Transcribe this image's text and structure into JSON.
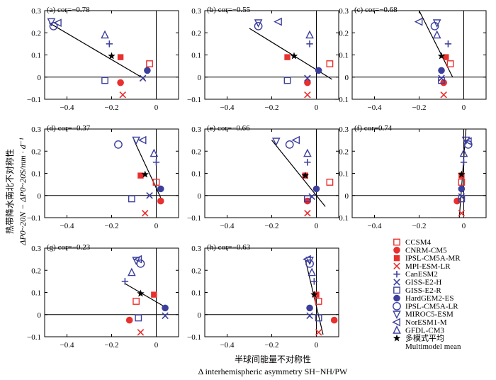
{
  "figure": {
    "ylabel_cn": "热带降水南北不对称性",
    "ylabel_en": "ΔP0~20N − ΔP0~20S/mm · d⁻¹",
    "xlabel_cn": "半球间能量不对称性",
    "xlabel_en": "Δ interhemispheric asymmetry SH−NH/PW"
  },
  "colors": {
    "red": "#e8302e",
    "blue": "#3c3f9c",
    "black": "#000000"
  },
  "legend": [
    {
      "label": "CCSM4",
      "shape": "square-open",
      "color": "red"
    },
    {
      "label": "CNRM-CM5",
      "shape": "circle-filled",
      "color": "red"
    },
    {
      "label": "IPSL-CM5A-MR",
      "shape": "square-filled",
      "color": "red"
    },
    {
      "label": "MPI-ESM-LR",
      "shape": "x",
      "color": "red"
    },
    {
      "label": "CanESM2",
      "shape": "plus",
      "color": "blue"
    },
    {
      "label": "GISS-E2-H",
      "shape": "x",
      "color": "blue"
    },
    {
      "label": "GISS-E2-R",
      "shape": "square-open",
      "color": "blue"
    },
    {
      "label": "HardGEM2-ES",
      "shape": "circle-filled",
      "color": "blue"
    },
    {
      "label": "IPSL-CM5A-LR",
      "shape": "circle-open",
      "color": "blue"
    },
    {
      "label": "MIROC5-ESM",
      "shape": "tri-down-open",
      "color": "blue"
    },
    {
      "label": "NorESM1-M",
      "shape": "tri-left-open",
      "color": "blue"
    },
    {
      "label": "GFDL-CM3",
      "shape": "tri-up-open",
      "color": "blue"
    },
    {
      "label": "多模式平均",
      "shape": "star",
      "color": "black"
    },
    {
      "label": "Multimodel mean",
      "shape": "none",
      "color": "black"
    }
  ],
  "chart_data": [
    {
      "type": "scatter",
      "panel": "(a)",
      "title": "(a) cor=−0.78",
      "xlim": [
        -0.5,
        0.1
      ],
      "ylim": [
        -0.1,
        0.3
      ],
      "xticks": [
        "-0.4",
        "-0.2",
        "0"
      ],
      "yticks": [
        "-0.1",
        "0",
        "0.1",
        "0.2",
        "0.3"
      ],
      "line": {
        "x": [
          -0.48,
          -0.05
        ],
        "y": [
          0.245,
          -0.01
        ]
      },
      "points": [
        {
          "model": "CCSM4",
          "x": -0.03,
          "y": 0.06
        },
        {
          "model": "CNRM-CM5",
          "x": -0.16,
          "y": -0.025
        },
        {
          "model": "IPSL-CM5A-MR",
          "x": -0.16,
          "y": 0.09
        },
        {
          "model": "MPI-ESM-LR",
          "x": -0.15,
          "y": -0.08
        },
        {
          "model": "CanESM2",
          "x": -0.21,
          "y": 0.15
        },
        {
          "model": "GISS-E2-H",
          "x": -0.06,
          "y": -0.005
        },
        {
          "model": "GISS-E2-R",
          "x": -0.23,
          "y": -0.015
        },
        {
          "model": "HardGEM2-ES",
          "x": -0.04,
          "y": 0.03
        },
        {
          "model": "IPSL-CM5A-LR",
          "x": -0.46,
          "y": 0.23
        },
        {
          "model": "MIROC5-ESM",
          "x": -0.47,
          "y": 0.25
        },
        {
          "model": "NorESM1-M",
          "x": -0.44,
          "y": 0.245
        },
        {
          "model": "GFDL-CM3",
          "x": -0.23,
          "y": 0.19
        },
        {
          "model": "Multimodel mean",
          "x": -0.2,
          "y": 0.095
        }
      ]
    },
    {
      "type": "scatter",
      "panel": "(b)",
      "title": "(b) cor=−0.55",
      "xlim": [
        -0.5,
        0.1
      ],
      "ylim": [
        -0.1,
        0.3
      ],
      "xticks": [
        "-0.4",
        "-0.2",
        "0"
      ],
      "yticks": [
        "-0.1",
        "0",
        "0.1",
        "0.2",
        "0.3"
      ],
      "line": {
        "x": [
          -0.3,
          0.07
        ],
        "y": [
          0.22,
          -0.01
        ]
      },
      "points": [
        {
          "model": "CCSM4",
          "x": 0.06,
          "y": 0.06
        },
        {
          "model": "CNRM-CM5",
          "x": -0.04,
          "y": -0.025
        },
        {
          "model": "IPSL-CM5A-MR",
          "x": -0.13,
          "y": 0.09
        },
        {
          "model": "MPI-ESM-LR",
          "x": -0.04,
          "y": -0.08
        },
        {
          "model": "CanESM2",
          "x": -0.03,
          "y": 0.15
        },
        {
          "model": "GISS-E2-H",
          "x": -0.04,
          "y": -0.005
        },
        {
          "model": "GISS-E2-R",
          "x": -0.13,
          "y": -0.015
        },
        {
          "model": "HardGEM2-ES",
          "x": 0.01,
          "y": 0.03
        },
        {
          "model": "IPSL-CM5A-LR",
          "x": -0.26,
          "y": 0.23
        },
        {
          "model": "MIROC5-ESM",
          "x": -0.26,
          "y": 0.245
        },
        {
          "model": "NorESM1-M",
          "x": -0.17,
          "y": 0.25
        },
        {
          "model": "GFDL-CM3",
          "x": -0.03,
          "y": 0.19
        },
        {
          "model": "Multimodel mean",
          "x": -0.1,
          "y": 0.095
        }
      ]
    },
    {
      "type": "scatter",
      "panel": "(c)",
      "title": "(c) cor=−0.68",
      "xlim": [
        -0.5,
        0.1
      ],
      "ylim": [
        -0.1,
        0.3
      ],
      "xticks": [
        "-0.4",
        "-0.2",
        "0"
      ],
      "yticks": [
        "-0.1",
        "0",
        "0.1",
        "0.2",
        "0.3"
      ],
      "line": {
        "x": [
          -0.2,
          -0.05
        ],
        "y": [
          0.3,
          0.0
        ]
      },
      "points": [
        {
          "model": "CCSM4",
          "x": -0.06,
          "y": 0.06
        },
        {
          "model": "CNRM-CM5",
          "x": -0.09,
          "y": -0.025
        },
        {
          "model": "IPSL-CM5A-MR",
          "x": -0.08,
          "y": 0.09
        },
        {
          "model": "MPI-ESM-LR",
          "x": -0.09,
          "y": -0.08
        },
        {
          "model": "CanESM2",
          "x": -0.07,
          "y": 0.15
        },
        {
          "model": "GISS-E2-H",
          "x": -0.1,
          "y": -0.005
        },
        {
          "model": "GISS-E2-R",
          "x": -0.1,
          "y": -0.015
        },
        {
          "model": "HardGEM2-ES",
          "x": -0.1,
          "y": 0.03
        },
        {
          "model": "IPSL-CM5A-LR",
          "x": -0.13,
          "y": 0.23
        },
        {
          "model": "MIROC5-ESM",
          "x": -0.12,
          "y": 0.245
        },
        {
          "model": "NorESM1-M",
          "x": -0.2,
          "y": 0.25
        },
        {
          "model": "GFDL-CM3",
          "x": -0.12,
          "y": 0.19
        },
        {
          "model": "Multimodel mean",
          "x": -0.1,
          "y": 0.095
        }
      ]
    },
    {
      "type": "scatter",
      "panel": "(d)",
      "title": "(d) cor=−0.37",
      "xlim": [
        -0.5,
        0.1
      ],
      "ylim": [
        -0.1,
        0.3
      ],
      "xticks": [
        "-0.4",
        "-0.2",
        "0"
      ],
      "yticks": [
        "-0.1",
        "0",
        "0.1",
        "0.2",
        "0.3"
      ],
      "line": {
        "x": [
          -0.1,
          0.02
        ],
        "y": [
          0.25,
          -0.01
        ]
      },
      "points": [
        {
          "model": "CCSM4",
          "x": 0.0,
          "y": 0.06
        },
        {
          "model": "CNRM-CM5",
          "x": 0.02,
          "y": -0.025
        },
        {
          "model": "IPSL-CM5A-MR",
          "x": -0.07,
          "y": 0.09
        },
        {
          "model": "MPI-ESM-LR",
          "x": -0.05,
          "y": -0.08
        },
        {
          "model": "CanESM2",
          "x": 0.0,
          "y": 0.15
        },
        {
          "model": "GISS-E2-H",
          "x": -0.03,
          "y": 0.0
        },
        {
          "model": "GISS-E2-R",
          "x": -0.11,
          "y": -0.015
        },
        {
          "model": "HardGEM2-ES",
          "x": 0.02,
          "y": 0.03
        },
        {
          "model": "IPSL-CM5A-LR",
          "x": -0.17,
          "y": 0.23
        },
        {
          "model": "MIROC5-ESM",
          "x": -0.09,
          "y": 0.25
        },
        {
          "model": "NorESM1-M",
          "x": -0.06,
          "y": 0.25
        },
        {
          "model": "GFDL-CM3",
          "x": -0.01,
          "y": 0.19
        },
        {
          "model": "Multimodel mean",
          "x": -0.05,
          "y": 0.095
        }
      ]
    },
    {
      "type": "scatter",
      "panel": "(e)",
      "title": "(e) cor=−0.66",
      "xlim": [
        -0.5,
        0.1
      ],
      "ylim": [
        -0.1,
        0.3
      ],
      "xticks": [
        "-0.4",
        "-0.2",
        "0"
      ],
      "yticks": [
        "-0.1",
        "0",
        "0.1",
        "0.2",
        "0.3"
      ],
      "line": {
        "x": [
          -0.2,
          0.04
        ],
        "y": [
          0.25,
          -0.05
        ]
      },
      "points": [
        {
          "model": "CCSM4",
          "x": 0.06,
          "y": 0.06
        },
        {
          "model": "CNRM-CM5",
          "x": -0.04,
          "y": -0.025
        },
        {
          "model": "IPSL-CM5A-MR",
          "x": -0.05,
          "y": 0.09
        },
        {
          "model": "MPI-ESM-LR",
          "x": -0.04,
          "y": -0.08
        },
        {
          "model": "CanESM2",
          "x": -0.04,
          "y": 0.15
        },
        {
          "model": "GISS-E2-H",
          "x": -0.02,
          "y": -0.005
        },
        {
          "model": "GISS-E2-R",
          "x": -0.04,
          "y": -0.015
        },
        {
          "model": "HardGEM2-ES",
          "x": 0.0,
          "y": 0.03
        },
        {
          "model": "IPSL-CM5A-LR",
          "x": -0.12,
          "y": 0.23
        },
        {
          "model": "MIROC5-ESM",
          "x": -0.18,
          "y": 0.245
        },
        {
          "model": "NorESM1-M",
          "x": -0.09,
          "y": 0.25
        },
        {
          "model": "GFDL-CM3",
          "x": -0.04,
          "y": 0.19
        },
        {
          "model": "Multimodel mean",
          "x": -0.05,
          "y": 0.09
        }
      ]
    },
    {
      "type": "scatter",
      "panel": "(f)",
      "title": "(f) cor=0.74",
      "xlim": [
        -0.5,
        0.1
      ],
      "ylim": [
        -0.1,
        0.3
      ],
      "xticks": [
        "-0.4",
        "-0.2",
        "0"
      ],
      "yticks": [
        "-0.1",
        "0",
        "0.1",
        "0.2",
        "0.3"
      ],
      "line": {
        "x": [
          -0.02,
          0.01
        ],
        "y": [
          -0.1,
          0.3
        ]
      },
      "points": [
        {
          "model": "CCSM4",
          "x": -0.01,
          "y": 0.06
        },
        {
          "model": "CNRM-CM5",
          "x": -0.03,
          "y": -0.025
        },
        {
          "model": "IPSL-CM5A-MR",
          "x": -0.01,
          "y": 0.09
        },
        {
          "model": "MPI-ESM-LR",
          "x": -0.01,
          "y": -0.08
        },
        {
          "model": "CanESM2",
          "x": 0.0,
          "y": 0.15
        },
        {
          "model": "GISS-E2-H",
          "x": -0.01,
          "y": -0.005
        },
        {
          "model": "GISS-E2-R",
          "x": -0.01,
          "y": -0.015
        },
        {
          "model": "HardGEM2-ES",
          "x": -0.01,
          "y": 0.03
        },
        {
          "model": "IPSL-CM5A-LR",
          "x": 0.02,
          "y": 0.23
        },
        {
          "model": "MIROC5-ESM",
          "x": 0.01,
          "y": 0.25
        },
        {
          "model": "NorESM1-M",
          "x": 0.02,
          "y": 0.245
        },
        {
          "model": "GFDL-CM3",
          "x": 0.0,
          "y": 0.19
        },
        {
          "model": "Multimodel mean",
          "x": -0.01,
          "y": 0.095
        }
      ]
    },
    {
      "type": "scatter",
      "panel": "(g)",
      "title": "(g) cor=−0.23",
      "xlim": [
        -0.5,
        0.1
      ],
      "ylim": [
        -0.1,
        0.3
      ],
      "xticks": [
        "-0.4",
        "-0.2",
        "0"
      ],
      "yticks": [
        "-0.1",
        "0",
        "0.1",
        "0.2",
        "0.3"
      ],
      "line": {
        "x": [
          -0.14,
          0.03
        ],
        "y": [
          0.14,
          0.04
        ]
      },
      "points": [
        {
          "model": "CCSM4",
          "x": -0.09,
          "y": 0.06
        },
        {
          "model": "CNRM-CM5",
          "x": -0.12,
          "y": -0.025
        },
        {
          "model": "IPSL-CM5A-MR",
          "x": -0.01,
          "y": 0.09
        },
        {
          "model": "MPI-ESM-LR",
          "x": -0.07,
          "y": -0.08
        },
        {
          "model": "CanESM2",
          "x": -0.14,
          "y": 0.15
        },
        {
          "model": "GISS-E2-H",
          "x": 0.04,
          "y": -0.005
        },
        {
          "model": "GISS-E2-R",
          "x": -0.08,
          "y": -0.015
        },
        {
          "model": "HardGEM2-ES",
          "x": 0.04,
          "y": 0.03
        },
        {
          "model": "IPSL-CM5A-LR",
          "x": -0.07,
          "y": 0.23
        },
        {
          "model": "MIROC5-ESM",
          "x": -0.09,
          "y": 0.245
        },
        {
          "model": "NorESM1-M",
          "x": -0.08,
          "y": 0.25
        },
        {
          "model": "GFDL-CM3",
          "x": -0.11,
          "y": 0.19
        },
        {
          "model": "Multimodel mean",
          "x": -0.07,
          "y": 0.095
        }
      ]
    },
    {
      "type": "scatter",
      "panel": "(h)",
      "title": "(h) cor=−0.63",
      "xlim": [
        -0.5,
        0.1
      ],
      "ylim": [
        -0.1,
        0.3
      ],
      "xticks": [
        "-0.4",
        "-0.2",
        "0"
      ],
      "yticks": [
        "-0.1",
        "0",
        "0.1",
        "0.2",
        "0.3"
      ],
      "line": {
        "x": [
          -0.05,
          0.03
        ],
        "y": [
          0.25,
          -0.09
        ]
      },
      "points": [
        {
          "model": "CCSM4",
          "x": 0.01,
          "y": 0.06
        },
        {
          "model": "CNRM-CM5",
          "x": 0.08,
          "y": -0.025
        },
        {
          "model": "IPSL-CM5A-MR",
          "x": 0.0,
          "y": 0.09
        },
        {
          "model": "MPI-ESM-LR",
          "x": 0.01,
          "y": -0.08
        },
        {
          "model": "CanESM2",
          "x": -0.01,
          "y": 0.15
        },
        {
          "model": "GISS-E2-H",
          "x": -0.03,
          "y": -0.005
        },
        {
          "model": "GISS-E2-R",
          "x": 0.01,
          "y": -0.015
        },
        {
          "model": "HardGEM2-ES",
          "x": -0.03,
          "y": 0.03
        },
        {
          "model": "IPSL-CM5A-LR",
          "x": -0.03,
          "y": 0.23
        },
        {
          "model": "MIROC5-ESM",
          "x": -0.03,
          "y": 0.245
        },
        {
          "model": "NorESM1-M",
          "x": -0.04,
          "y": 0.25
        },
        {
          "model": "GFDL-CM3",
          "x": -0.02,
          "y": 0.19
        },
        {
          "model": "Multimodel mean",
          "x": -0.01,
          "y": 0.09
        }
      ]
    }
  ]
}
